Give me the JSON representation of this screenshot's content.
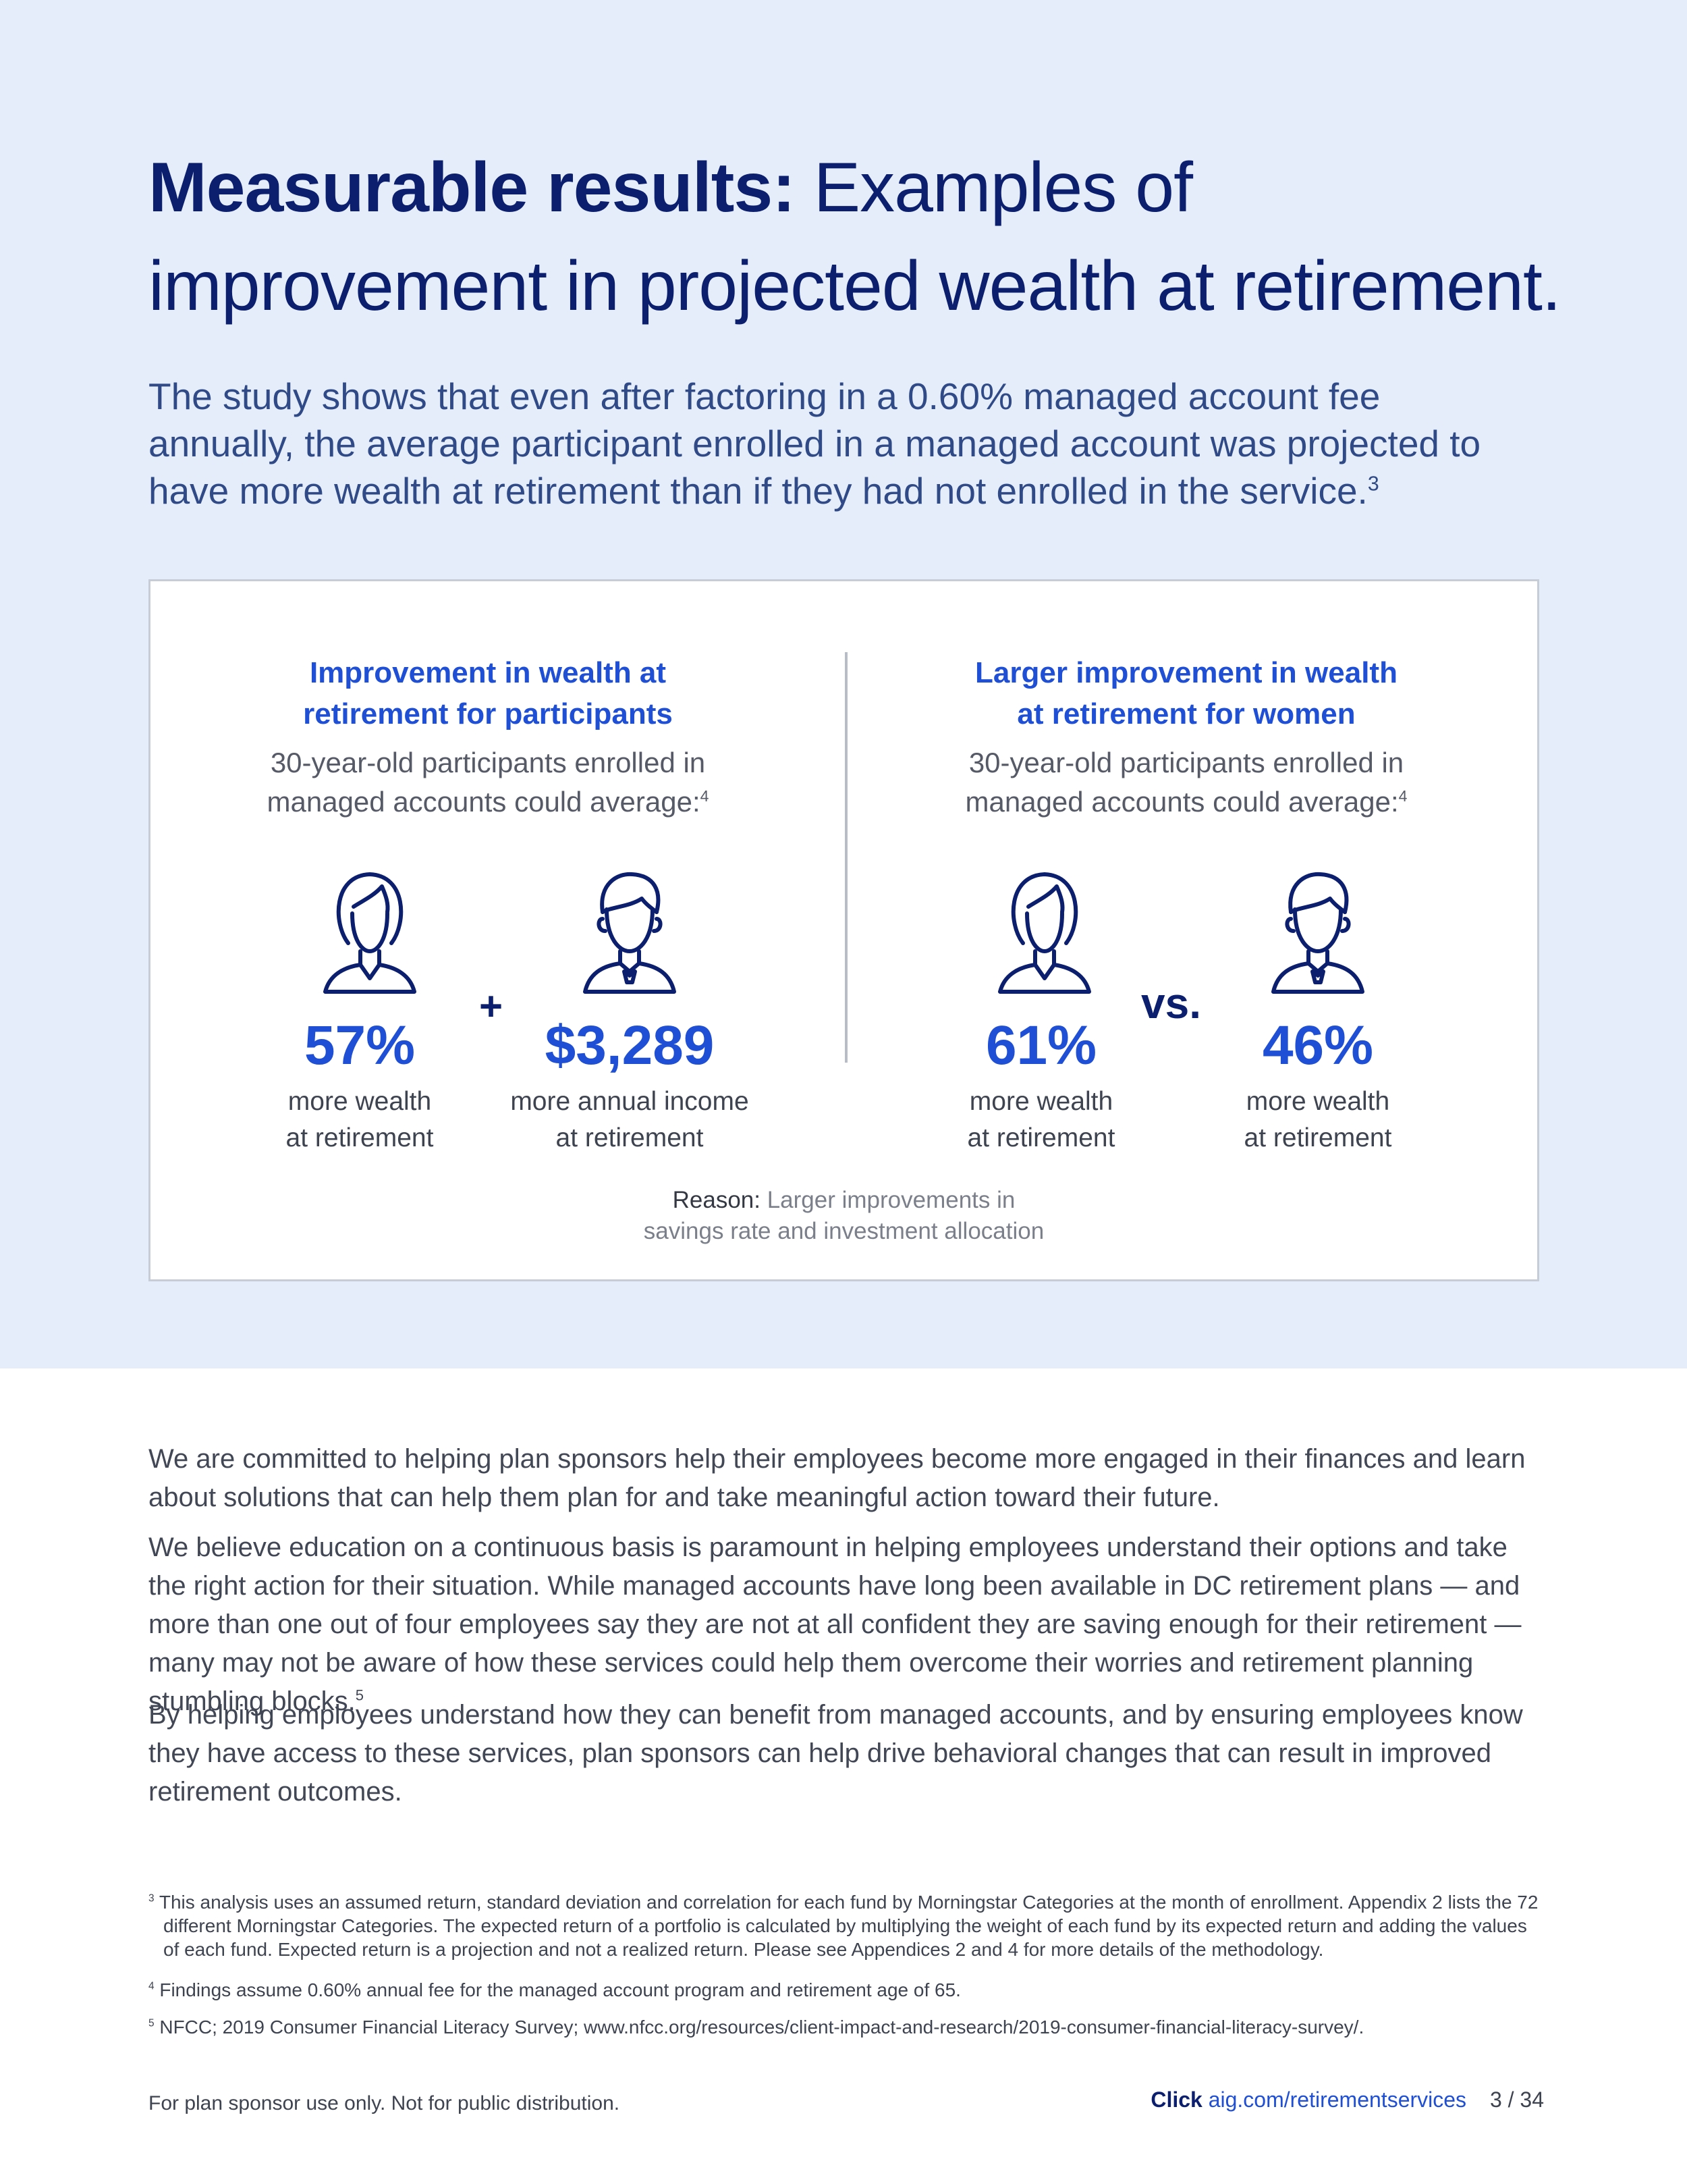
{
  "header": {
    "title_strong": "Measurable results:",
    "title_rest": " Examples of improvement in projected wealth at retirement.",
    "intro": "The study shows that even after factoring in a 0.60% managed account fee annually, the average participant enrolled in a managed account was projected to have more wealth at retirement than if they had not enrolled in the service.",
    "intro_sup": "3"
  },
  "card": {
    "left": {
      "heading_line1": "Improvement in wealth at",
      "heading_line2": "retirement for participants",
      "sub_line1": "30-year-old participants enrolled in",
      "sub_line2": "managed accounts could average:",
      "sub_sup": "4",
      "connector": "+",
      "stats": [
        {
          "value": "57%",
          "label_line1": "more wealth",
          "label_line2": "at retirement",
          "icon": "woman-icon"
        },
        {
          "value": "$3,289",
          "label_line1": "more annual income",
          "label_line2": "at retirement",
          "icon": "man-icon"
        }
      ]
    },
    "right": {
      "heading_line1": "Larger improvement in wealth",
      "heading_line2": "at retirement for women",
      "sub_line1": "30-year-old participants enrolled in",
      "sub_line2": "managed accounts could average:",
      "sub_sup": "4",
      "connector": "vs.",
      "stats": [
        {
          "value": "61%",
          "label_line1": "more wealth",
          "label_line2": "at retirement",
          "icon": "woman-icon"
        },
        {
          "value": "46%",
          "label_line1": "more wealth",
          "label_line2": "at retirement",
          "icon": "man-icon"
        }
      ]
    },
    "reason_key": "Reason:",
    "reason_line1": " Larger improvements in",
    "reason_line2": "savings rate and investment allocation"
  },
  "body": {
    "p1": "We are committed to helping plan sponsors help their employees become more engaged in their finances and learn about solutions that can help them plan for and take meaningful action toward their future.",
    "p2": "We believe education on a continuous basis is paramount in helping employees understand their options and take the right action for their situation. While managed accounts have long been available in DC retirement plans — and more than one out of four employees say they are not at all confident they are saving enough for their retirement — many may not be aware of how these services could help them overcome their worries and retirement planning stumbling blocks.",
    "p2_sup": "5",
    "p3": "By helping employees understand how they can benefit from managed accounts, and by ensuring employees know they have access to these services, plan sponsors can help drive behavioral changes that can result in improved retirement outcomes."
  },
  "footnotes": [
    {
      "mark": "3",
      "text": "This analysis uses an assumed return, standard deviation and correlation for each fund by Morningstar Categories at the month of enrollment. Appendix 2 lists the 72 different Morningstar Categories. The expected return of a portfolio is calculated by multiplying the weight of each fund by its expected return and adding the values of each fund. Expected return is a projection and not a realized return. Please see Appendices 2 and 4 for more details of the methodology."
    },
    {
      "mark": "4",
      "text": "Findings assume 0.60% annual fee for the managed account program and retirement age of 65."
    },
    {
      "mark": "5",
      "text": "NFCC; 2019 Consumer Financial Literacy Survey; www.nfcc.org/resources/client-impact-and-research/2019-consumer-financial-literacy-survey/."
    }
  ],
  "footer": {
    "disclaimer": "For plan sponsor use only. Not for public distribution.",
    "click_label": "Click",
    "link_text": "aig.com/retirementservices",
    "page": "3 / 34"
  },
  "colors": {
    "hero_bg": "#e4edf9",
    "navy": "#0c1f6e",
    "accent_blue": "#1f4fd4"
  }
}
